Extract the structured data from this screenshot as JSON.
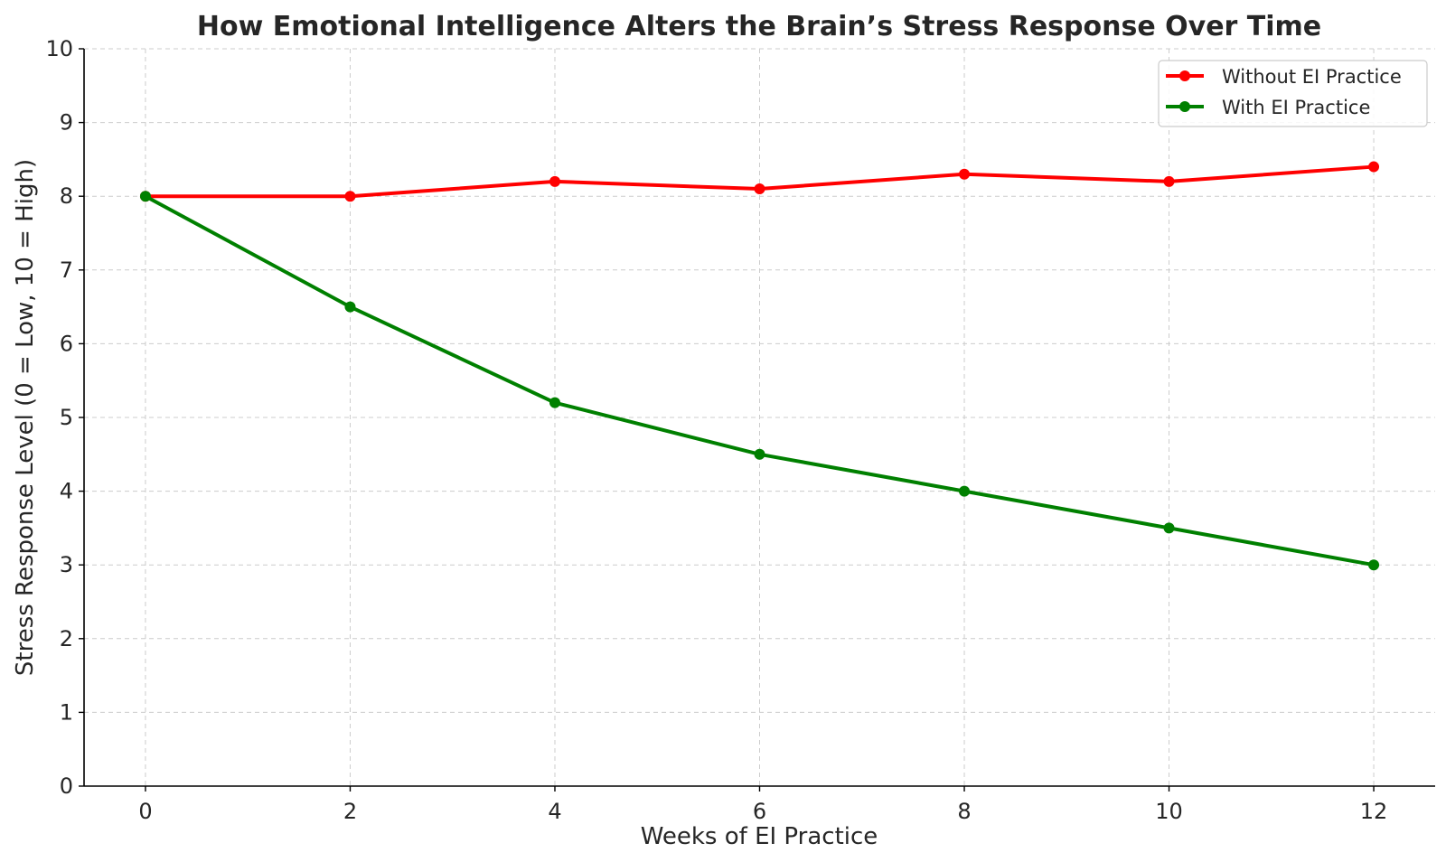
{
  "chart_data": {
    "type": "line",
    "title": "How Emotional Intelligence Alters the Brain’s Stress Response Over Time",
    "xlabel": "Weeks of EI Practice",
    "ylabel": "Stress Response Level (0 = Low, 10 = High)",
    "x": [
      0,
      2,
      4,
      6,
      8,
      10,
      12
    ],
    "xticks": [
      0,
      2,
      4,
      6,
      8,
      10,
      12
    ],
    "yticks": [
      0,
      1,
      2,
      3,
      4,
      5,
      6,
      7,
      8,
      9,
      10
    ],
    "xlim": [
      -0.6,
      12.6
    ],
    "ylim": [
      0,
      10
    ],
    "grid": true,
    "legend_position": "top-right",
    "series": [
      {
        "name": "Without EI Practice",
        "color": "#ff0000",
        "values": [
          8.0,
          8.0,
          8.2,
          8.1,
          8.3,
          8.2,
          8.4
        ]
      },
      {
        "name": "With EI Practice",
        "color": "#008000",
        "values": [
          8.0,
          6.5,
          5.2,
          4.5,
          4.0,
          3.5,
          3.0
        ]
      }
    ]
  }
}
